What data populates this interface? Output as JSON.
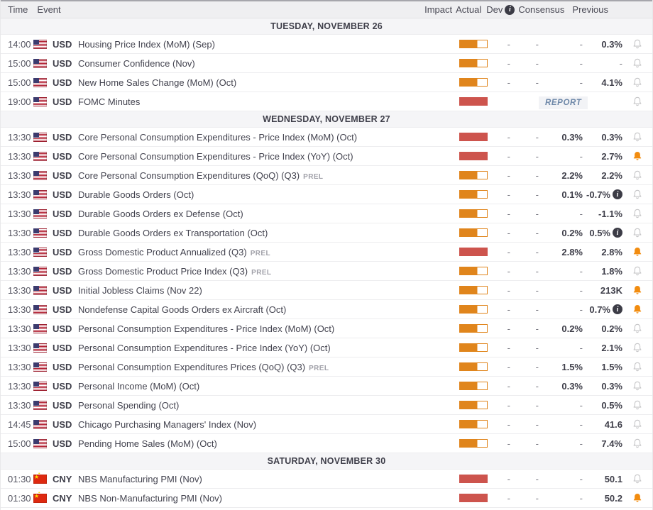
{
  "columns": {
    "time": "Time",
    "event": "Event",
    "impact": "Impact",
    "actual": "Actual",
    "dev": "Dev",
    "consensus": "Consensus",
    "previous": "Previous"
  },
  "report_label": "REPORT",
  "colors": {
    "impact_medium": "#e0851c",
    "impact_high": "#cd544d",
    "bell_default": "#c6c6c8",
    "bell_active": "#f28c0f",
    "report_text": "#6d87a8",
    "info_badge_bg": "#3c3c46"
  },
  "sections": [
    {
      "date": "TUESDAY, NOVEMBER 26",
      "rows": [
        {
          "time": "14:00",
          "currency": "USD",
          "flag": "us",
          "event": "Housing Price Index (MoM) (Sep)",
          "suffix": "",
          "impact": "medium",
          "actual": "-",
          "dev": "-",
          "consensus": "-",
          "previous": "0.3%",
          "prev_info": false,
          "bell": "default",
          "report": false
        },
        {
          "time": "15:00",
          "currency": "USD",
          "flag": "us",
          "event": "Consumer Confidence (Nov)",
          "suffix": "",
          "impact": "medium",
          "actual": "-",
          "dev": "-",
          "consensus": "-",
          "previous": "-",
          "prev_info": false,
          "bell": "default",
          "report": false
        },
        {
          "time": "15:00",
          "currency": "USD",
          "flag": "us",
          "event": "New Home Sales Change (MoM) (Oct)",
          "suffix": "",
          "impact": "medium",
          "actual": "-",
          "dev": "-",
          "consensus": "-",
          "previous": "4.1%",
          "prev_info": false,
          "bell": "default",
          "report": false
        },
        {
          "time": "19:00",
          "currency": "USD",
          "flag": "us",
          "event": "FOMC Minutes",
          "suffix": "",
          "impact": "high",
          "actual": "",
          "dev": "",
          "consensus": "",
          "previous": "",
          "prev_info": false,
          "bell": "default",
          "report": true
        }
      ]
    },
    {
      "date": "WEDNESDAY, NOVEMBER 27",
      "rows": [
        {
          "time": "13:30",
          "currency": "USD",
          "flag": "us",
          "event": "Core Personal Consumption Expenditures - Price Index (MoM) (Oct)",
          "suffix": "",
          "impact": "high",
          "actual": "-",
          "dev": "-",
          "consensus": "0.3%",
          "previous": "0.3%",
          "prev_info": false,
          "bell": "default",
          "report": false
        },
        {
          "time": "13:30",
          "currency": "USD",
          "flag": "us",
          "event": "Core Personal Consumption Expenditures - Price Index (YoY) (Oct)",
          "suffix": "",
          "impact": "high",
          "actual": "-",
          "dev": "-",
          "consensus": "-",
          "previous": "2.7%",
          "prev_info": false,
          "bell": "active",
          "report": false
        },
        {
          "time": "13:30",
          "currency": "USD",
          "flag": "us",
          "event": "Core Personal Consumption Expenditures (QoQ) (Q3)",
          "suffix": "PREL",
          "impact": "medium",
          "actual": "-",
          "dev": "-",
          "consensus": "2.2%",
          "previous": "2.2%",
          "prev_info": false,
          "bell": "default",
          "report": false
        },
        {
          "time": "13:30",
          "currency": "USD",
          "flag": "us",
          "event": "Durable Goods Orders (Oct)",
          "suffix": "",
          "impact": "medium",
          "actual": "-",
          "dev": "-",
          "consensus": "0.1%",
          "previous": "-0.7%",
          "prev_info": true,
          "bell": "default",
          "report": false
        },
        {
          "time": "13:30",
          "currency": "USD",
          "flag": "us",
          "event": "Durable Goods Orders ex Defense (Oct)",
          "suffix": "",
          "impact": "medium",
          "actual": "-",
          "dev": "-",
          "consensus": "-",
          "previous": "-1.1%",
          "prev_info": false,
          "bell": "default",
          "report": false
        },
        {
          "time": "13:30",
          "currency": "USD",
          "flag": "us",
          "event": "Durable Goods Orders ex Transportation (Oct)",
          "suffix": "",
          "impact": "medium",
          "actual": "-",
          "dev": "-",
          "consensus": "0.2%",
          "previous": "0.5%",
          "prev_info": true,
          "bell": "default",
          "report": false
        },
        {
          "time": "13:30",
          "currency": "USD",
          "flag": "us",
          "event": "Gross Domestic Product Annualized (Q3)",
          "suffix": "PREL",
          "impact": "high",
          "actual": "-",
          "dev": "-",
          "consensus": "2.8%",
          "previous": "2.8%",
          "prev_info": false,
          "bell": "active",
          "report": false
        },
        {
          "time": "13:30",
          "currency": "USD",
          "flag": "us",
          "event": "Gross Domestic Product Price Index (Q3)",
          "suffix": "PREL",
          "impact": "medium",
          "actual": "-",
          "dev": "-",
          "consensus": "-",
          "previous": "1.8%",
          "prev_info": false,
          "bell": "default",
          "report": false
        },
        {
          "time": "13:30",
          "currency": "USD",
          "flag": "us",
          "event": "Initial Jobless Claims (Nov 22)",
          "suffix": "",
          "impact": "medium",
          "actual": "-",
          "dev": "-",
          "consensus": "-",
          "previous": "213K",
          "prev_info": false,
          "bell": "active",
          "report": false
        },
        {
          "time": "13:30",
          "currency": "USD",
          "flag": "us",
          "event": "Nondefense Capital Goods Orders ex Aircraft (Oct)",
          "suffix": "",
          "impact": "medium",
          "actual": "-",
          "dev": "-",
          "consensus": "-",
          "previous": "0.7%",
          "prev_info": true,
          "bell": "active",
          "report": false
        },
        {
          "time": "13:30",
          "currency": "USD",
          "flag": "us",
          "event": "Personal Consumption Expenditures - Price Index (MoM) (Oct)",
          "suffix": "",
          "impact": "medium",
          "actual": "-",
          "dev": "-",
          "consensus": "0.2%",
          "previous": "0.2%",
          "prev_info": false,
          "bell": "default",
          "report": false
        },
        {
          "time": "13:30",
          "currency": "USD",
          "flag": "us",
          "event": "Personal Consumption Expenditures - Price Index (YoY) (Oct)",
          "suffix": "",
          "impact": "medium",
          "actual": "-",
          "dev": "-",
          "consensus": "-",
          "previous": "2.1%",
          "prev_info": false,
          "bell": "default",
          "report": false
        },
        {
          "time": "13:30",
          "currency": "USD",
          "flag": "us",
          "event": "Personal Consumption Expenditures Prices (QoQ) (Q3)",
          "suffix": "PREL",
          "impact": "medium",
          "actual": "-",
          "dev": "-",
          "consensus": "1.5%",
          "previous": "1.5%",
          "prev_info": false,
          "bell": "default",
          "report": false
        },
        {
          "time": "13:30",
          "currency": "USD",
          "flag": "us",
          "event": "Personal Income (MoM) (Oct)",
          "suffix": "",
          "impact": "medium",
          "actual": "-",
          "dev": "-",
          "consensus": "0.3%",
          "previous": "0.3%",
          "prev_info": false,
          "bell": "default",
          "report": false
        },
        {
          "time": "13:30",
          "currency": "USD",
          "flag": "us",
          "event": "Personal Spending (Oct)",
          "suffix": "",
          "impact": "medium",
          "actual": "-",
          "dev": "-",
          "consensus": "-",
          "previous": "0.5%",
          "prev_info": false,
          "bell": "default",
          "report": false
        },
        {
          "time": "14:45",
          "currency": "USD",
          "flag": "us",
          "event": "Chicago Purchasing Managers' Index (Nov)",
          "suffix": "",
          "impact": "medium",
          "actual": "-",
          "dev": "-",
          "consensus": "-",
          "previous": "41.6",
          "prev_info": false,
          "bell": "default",
          "report": false
        },
        {
          "time": "15:00",
          "currency": "USD",
          "flag": "us",
          "event": "Pending Home Sales (MoM) (Oct)",
          "suffix": "",
          "impact": "medium",
          "actual": "-",
          "dev": "-",
          "consensus": "-",
          "previous": "7.4%",
          "prev_info": false,
          "bell": "default",
          "report": false
        }
      ]
    },
    {
      "date": "SATURDAY, NOVEMBER 30",
      "rows": [
        {
          "time": "01:30",
          "currency": "CNY",
          "flag": "cn",
          "event": "NBS Manufacturing PMI (Nov)",
          "suffix": "",
          "impact": "high",
          "actual": "-",
          "dev": "-",
          "consensus": "-",
          "previous": "50.1",
          "prev_info": false,
          "bell": "default",
          "report": false
        },
        {
          "time": "01:30",
          "currency": "CNY",
          "flag": "cn",
          "event": "NBS Non-Manufacturing PMI (Nov)",
          "suffix": "",
          "impact": "high",
          "actual": "-",
          "dev": "-",
          "consensus": "-",
          "previous": "50.2",
          "prev_info": false,
          "bell": "active",
          "report": false
        }
      ]
    }
  ]
}
